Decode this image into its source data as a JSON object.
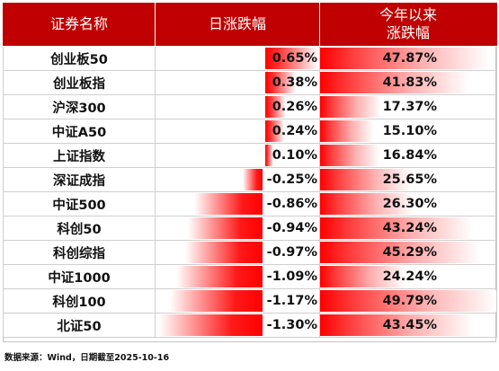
{
  "table": {
    "headers": {
      "name": "证券名称",
      "daily": "日涨跌幅",
      "ytd_line1": "今年以来",
      "ytd_line2": "涨跌幅"
    },
    "rows": [
      {
        "name": "创业板50",
        "daily": "0.65%",
        "daily_value": 0.65,
        "ytd": "47.87%",
        "ytd_value": 47.87
      },
      {
        "name": "创业板指",
        "daily": "0.38%",
        "daily_value": 0.38,
        "ytd": "41.83%",
        "ytd_value": 41.83
      },
      {
        "name": "沪深300",
        "daily": "0.26%",
        "daily_value": 0.26,
        "ytd": "17.37%",
        "ytd_value": 17.37
      },
      {
        "name": "中证A50",
        "daily": "0.24%",
        "daily_value": 0.24,
        "ytd": "15.10%",
        "ytd_value": 15.1
      },
      {
        "name": "上证指数",
        "daily": "0.10%",
        "daily_value": 0.1,
        "ytd": "16.84%",
        "ytd_value": 16.84
      },
      {
        "name": "深证成指",
        "daily": "-0.25%",
        "daily_value": -0.25,
        "ytd": "25.65%",
        "ytd_value": 25.65
      },
      {
        "name": "中证500",
        "daily": "-0.86%",
        "daily_value": -0.86,
        "ytd": "26.30%",
        "ytd_value": 26.3
      },
      {
        "name": "科创50",
        "daily": "-0.94%",
        "daily_value": -0.94,
        "ytd": "43.24%",
        "ytd_value": 43.24
      },
      {
        "name": "科创综指",
        "daily": "-0.97%",
        "daily_value": -0.97,
        "ytd": "45.29%",
        "ytd_value": 45.29
      },
      {
        "name": "中证1000",
        "daily": "-1.09%",
        "daily_value": -1.09,
        "ytd": "24.24%",
        "ytd_value": 24.24
      },
      {
        "name": "科创100",
        "daily": "-1.17%",
        "daily_value": -1.17,
        "ytd": "49.79%",
        "ytd_value": 49.79
      },
      {
        "name": "北证50",
        "daily": "-1.30%",
        "daily_value": -1.3,
        "ytd": "43.45%",
        "ytd_value": 43.45
      }
    ]
  },
  "source_note": "数据来源：Wind，日期截至2025-10-16",
  "colors": {
    "header_bg": "#c00000",
    "bar": "#ff0000"
  }
}
